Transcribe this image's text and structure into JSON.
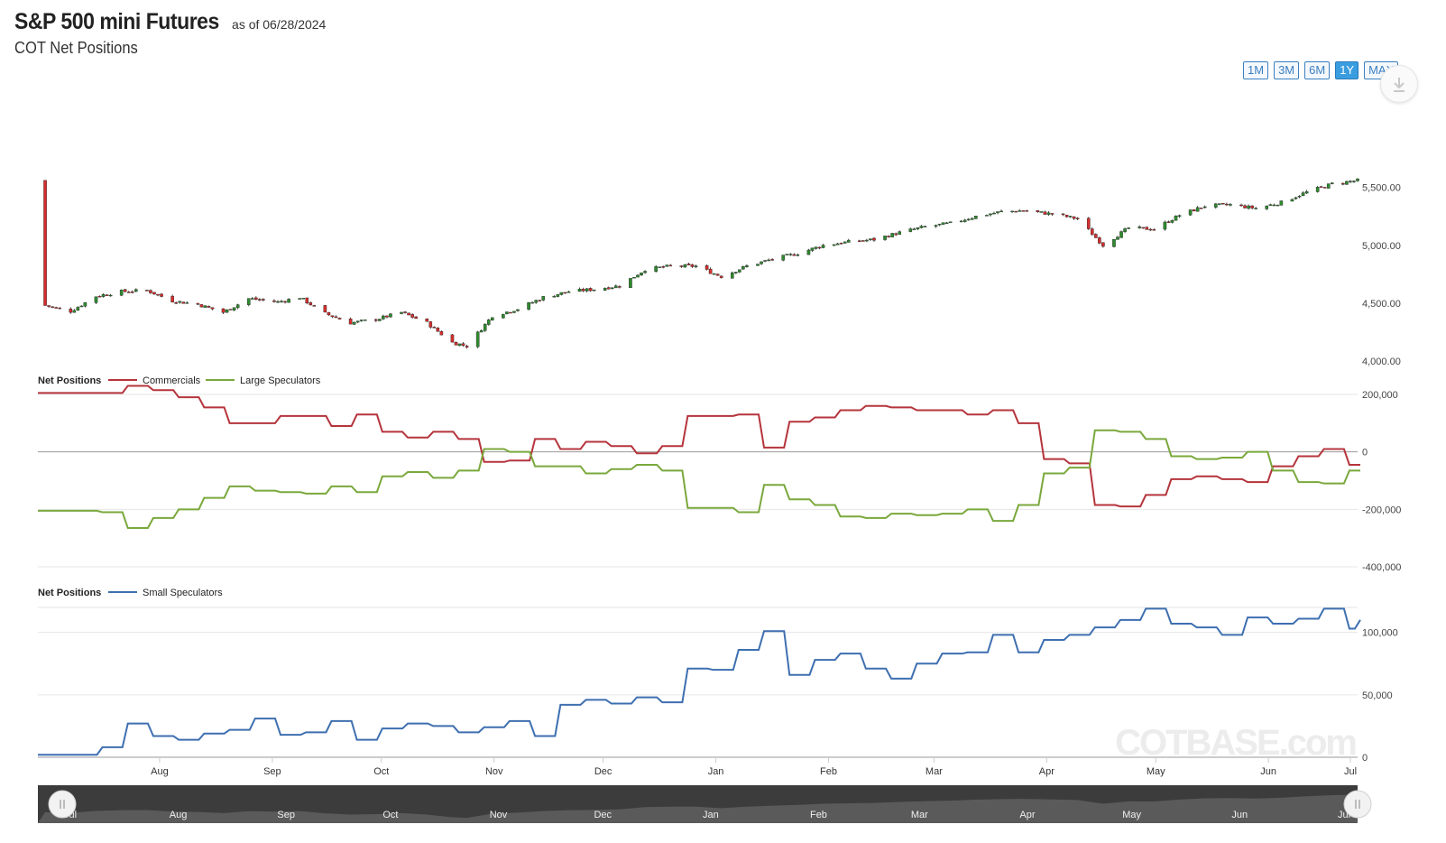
{
  "header": {
    "title": "S&P 500 mini Futures",
    "as_of": "as of 06/28/2024",
    "subtitle": "COT Net Positions"
  },
  "range_buttons": [
    {
      "label": "1M",
      "active": false
    },
    {
      "label": "3M",
      "active": false
    },
    {
      "label": "6M",
      "active": false
    },
    {
      "label": "1Y",
      "active": true
    },
    {
      "label": "MAX",
      "active": false
    }
  ],
  "download_icon": "download-icon",
  "watermark": "COTBASE.com",
  "colors": {
    "up_candle": "#2e8b2e",
    "down_candle": "#d62d2d",
    "commercials": "#b5343c",
    "large_speculators": "#7aa83c",
    "small_speculators": "#3e6fb0",
    "accent": "#3a9de0"
  },
  "x_axis_months": [
    "Aug",
    "Sep",
    "Oct",
    "Nov",
    "Dec",
    "Jan",
    "Feb",
    "Mar",
    "Apr",
    "May",
    "Jun",
    "Jul"
  ],
  "navigator": {
    "months": [
      "Jul",
      "Aug",
      "Sep",
      "Oct",
      "Nov",
      "Dec",
      "Jan",
      "Feb",
      "Mar",
      "Apr",
      "May",
      "Jun",
      "Jul"
    ]
  },
  "chart_data": [
    {
      "type": "candlestick",
      "title": "",
      "ylim": [
        4000,
        5700
      ],
      "y_ticks": [
        "4,000.00",
        "4,500.00",
        "5,000.00",
        "5,500.00"
      ],
      "x_range": [
        "2023-07-01",
        "2024-06-28"
      ],
      "close_path": [
        [
          "2023-07-03",
          4480
        ],
        [
          "2023-07-10",
          4430
        ],
        [
          "2023-07-17",
          4560
        ],
        [
          "2023-07-24",
          4600
        ],
        [
          "2023-07-31",
          4610
        ],
        [
          "2023-08-07",
          4520
        ],
        [
          "2023-08-14",
          4490
        ],
        [
          "2023-08-21",
          4420
        ],
        [
          "2023-08-28",
          4540
        ],
        [
          "2023-09-05",
          4510
        ],
        [
          "2023-09-11",
          4550
        ],
        [
          "2023-09-18",
          4410
        ],
        [
          "2023-09-25",
          4330
        ],
        [
          "2023-10-02",
          4360
        ],
        [
          "2023-10-09",
          4420
        ],
        [
          "2023-10-16",
          4330
        ],
        [
          "2023-10-23",
          4160
        ],
        [
          "2023-10-27",
          4130
        ],
        [
          "2023-11-03",
          4390
        ],
        [
          "2023-11-10",
          4450
        ],
        [
          "2023-11-17",
          4550
        ],
        [
          "2023-11-24",
          4600
        ],
        [
          "2023-12-01",
          4620
        ],
        [
          "2023-12-08",
          4650
        ],
        [
          "2023-12-15",
          4790
        ],
        [
          "2023-12-22",
          4820
        ],
        [
          "2023-12-29",
          4820
        ],
        [
          "2024-01-05",
          4730
        ],
        [
          "2024-01-12",
          4820
        ],
        [
          "2024-01-19",
          4880
        ],
        [
          "2024-01-26",
          4930
        ],
        [
          "2024-02-02",
          5000
        ],
        [
          "2024-02-09",
          5030
        ],
        [
          "2024-02-16",
          5050
        ],
        [
          "2024-02-23",
          5110
        ],
        [
          "2024-03-01",
          5160
        ],
        [
          "2024-03-08",
          5190
        ],
        [
          "2024-03-15",
          5250
        ],
        [
          "2024-03-22",
          5290
        ],
        [
          "2024-03-28",
          5300
        ],
        [
          "2024-04-05",
          5270
        ],
        [
          "2024-04-12",
          5230
        ],
        [
          "2024-04-19",
          5000
        ],
        [
          "2024-04-26",
          5150
        ],
        [
          "2024-05-03",
          5140
        ],
        [
          "2024-05-10",
          5260
        ],
        [
          "2024-05-17",
          5340
        ],
        [
          "2024-05-24",
          5350
        ],
        [
          "2024-05-31",
          5320
        ],
        [
          "2024-06-07",
          5370
        ],
        [
          "2024-06-14",
          5460
        ],
        [
          "2024-06-21",
          5530
        ],
        [
          "2024-06-28",
          5560
        ]
      ]
    },
    {
      "type": "line",
      "legend_title": "Net Positions",
      "ylim": [
        -400000,
        200000
      ],
      "y_ticks": [
        "-400,000",
        "-200,000",
        "0",
        "200,000"
      ],
      "series": [
        {
          "name": "Commercials",
          "points": [
            [
              "2023-07-01",
              205000
            ],
            [
              "2023-07-11",
              205000
            ],
            [
              "2023-07-18",
              205000
            ],
            [
              "2023-07-25",
              230000
            ],
            [
              "2023-08-01",
              215000
            ],
            [
              "2023-08-08",
              190000
            ],
            [
              "2023-08-15",
              155000
            ],
            [
              "2023-08-22",
              100000
            ],
            [
              "2023-08-29",
              100000
            ],
            [
              "2023-09-05",
              125000
            ],
            [
              "2023-09-12",
              125000
            ],
            [
              "2023-09-19",
              90000
            ],
            [
              "2023-09-26",
              130000
            ],
            [
              "2023-10-03",
              70000
            ],
            [
              "2023-10-10",
              50000
            ],
            [
              "2023-10-17",
              70000
            ],
            [
              "2023-10-24",
              45000
            ],
            [
              "2023-10-31",
              -35000
            ],
            [
              "2023-11-07",
              -30000
            ],
            [
              "2023-11-14",
              45000
            ],
            [
              "2023-11-21",
              10000
            ],
            [
              "2023-11-28",
              35000
            ],
            [
              "2023-12-05",
              20000
            ],
            [
              "2023-12-12",
              -5000
            ],
            [
              "2023-12-19",
              20000
            ],
            [
              "2023-12-26",
              125000
            ],
            [
              "2024-01-02",
              125000
            ],
            [
              "2024-01-09",
              130000
            ],
            [
              "2024-01-16",
              15000
            ],
            [
              "2024-01-23",
              105000
            ],
            [
              "2024-01-30",
              120000
            ],
            [
              "2024-02-06",
              145000
            ],
            [
              "2024-02-13",
              160000
            ],
            [
              "2024-02-20",
              155000
            ],
            [
              "2024-02-27",
              145000
            ],
            [
              "2024-03-05",
              145000
            ],
            [
              "2024-03-12",
              130000
            ],
            [
              "2024-03-19",
              145000
            ],
            [
              "2024-03-26",
              100000
            ],
            [
              "2024-04-02",
              -25000
            ],
            [
              "2024-04-09",
              -40000
            ],
            [
              "2024-04-16",
              -185000
            ],
            [
              "2024-04-23",
              -190000
            ],
            [
              "2024-04-30",
              -150000
            ],
            [
              "2024-05-07",
              -95000
            ],
            [
              "2024-05-14",
              -85000
            ],
            [
              "2024-05-21",
              -95000
            ],
            [
              "2024-05-28",
              -105000
            ],
            [
              "2024-06-04",
              -50000
            ],
            [
              "2024-06-11",
              -15000
            ],
            [
              "2024-06-18",
              10000
            ],
            [
              "2024-06-25",
              -45000
            ],
            [
              "2024-06-28",
              -45000
            ]
          ]
        },
        {
          "name": "Large Speculators",
          "points": [
            [
              "2023-07-01",
              -205000
            ],
            [
              "2023-07-11",
              -205000
            ],
            [
              "2023-07-18",
              -210000
            ],
            [
              "2023-07-25",
              -265000
            ],
            [
              "2023-08-01",
              -230000
            ],
            [
              "2023-08-08",
              -200000
            ],
            [
              "2023-08-15",
              -160000
            ],
            [
              "2023-08-22",
              -120000
            ],
            [
              "2023-08-29",
              -135000
            ],
            [
              "2023-09-05",
              -140000
            ],
            [
              "2023-09-12",
              -145000
            ],
            [
              "2023-09-19",
              -120000
            ],
            [
              "2023-09-26",
              -140000
            ],
            [
              "2023-10-03",
              -85000
            ],
            [
              "2023-10-10",
              -70000
            ],
            [
              "2023-10-17",
              -90000
            ],
            [
              "2023-10-24",
              -65000
            ],
            [
              "2023-10-31",
              10000
            ],
            [
              "2023-11-07",
              0
            ],
            [
              "2023-11-14",
              -50000
            ],
            [
              "2023-11-21",
              -50000
            ],
            [
              "2023-11-28",
              -75000
            ],
            [
              "2023-12-05",
              -60000
            ],
            [
              "2023-12-12",
              -45000
            ],
            [
              "2023-12-19",
              -65000
            ],
            [
              "2023-12-26",
              -195000
            ],
            [
              "2024-01-02",
              -195000
            ],
            [
              "2024-01-09",
              -210000
            ],
            [
              "2024-01-16",
              -115000
            ],
            [
              "2024-01-23",
              -165000
            ],
            [
              "2024-01-30",
              -185000
            ],
            [
              "2024-02-06",
              -225000
            ],
            [
              "2024-02-13",
              -230000
            ],
            [
              "2024-02-20",
              -215000
            ],
            [
              "2024-02-27",
              -220000
            ],
            [
              "2024-03-05",
              -215000
            ],
            [
              "2024-03-12",
              -200000
            ],
            [
              "2024-03-19",
              -240000
            ],
            [
              "2024-03-26",
              -185000
            ],
            [
              "2024-04-02",
              -75000
            ],
            [
              "2024-04-09",
              -55000
            ],
            [
              "2024-04-16",
              75000
            ],
            [
              "2024-04-23",
              70000
            ],
            [
              "2024-04-30",
              45000
            ],
            [
              "2024-05-07",
              -15000
            ],
            [
              "2024-05-14",
              -25000
            ],
            [
              "2024-05-21",
              -20000
            ],
            [
              "2024-05-28",
              0
            ],
            [
              "2024-06-04",
              -65000
            ],
            [
              "2024-06-11",
              -105000
            ],
            [
              "2024-06-18",
              -110000
            ],
            [
              "2024-06-25",
              -65000
            ],
            [
              "2024-06-28",
              -65000
            ]
          ]
        }
      ]
    },
    {
      "type": "line",
      "legend_title": "Net Positions",
      "ylim": [
        0,
        120000
      ],
      "y_ticks": [
        "0",
        "50,000",
        "100,000"
      ],
      "series": [
        {
          "name": "Small Speculators",
          "points": [
            [
              "2023-07-01",
              2000
            ],
            [
              "2023-07-11",
              2000
            ],
            [
              "2023-07-18",
              8000
            ],
            [
              "2023-07-25",
              27000
            ],
            [
              "2023-08-01",
              17000
            ],
            [
              "2023-08-08",
              14000
            ],
            [
              "2023-08-15",
              19000
            ],
            [
              "2023-08-22",
              22000
            ],
            [
              "2023-08-29",
              31000
            ],
            [
              "2023-09-05",
              18000
            ],
            [
              "2023-09-12",
              20000
            ],
            [
              "2023-09-19",
              29000
            ],
            [
              "2023-09-26",
              14000
            ],
            [
              "2023-10-03",
              23000
            ],
            [
              "2023-10-10",
              27000
            ],
            [
              "2023-10-17",
              25000
            ],
            [
              "2023-10-24",
              20000
            ],
            [
              "2023-10-31",
              24000
            ],
            [
              "2023-11-07",
              29000
            ],
            [
              "2023-11-14",
              17000
            ],
            [
              "2023-11-21",
              42000
            ],
            [
              "2023-11-28",
              46000
            ],
            [
              "2023-12-05",
              43000
            ],
            [
              "2023-12-12",
              48000
            ],
            [
              "2023-12-19",
              44000
            ],
            [
              "2023-12-26",
              71000
            ],
            [
              "2024-01-02",
              70000
            ],
            [
              "2024-01-09",
              86000
            ],
            [
              "2024-01-16",
              101000
            ],
            [
              "2024-01-23",
              66000
            ],
            [
              "2024-01-30",
              78000
            ],
            [
              "2024-02-06",
              83000
            ],
            [
              "2024-02-13",
              71000
            ],
            [
              "2024-02-20",
              63000
            ],
            [
              "2024-02-27",
              75000
            ],
            [
              "2024-03-05",
              83000
            ],
            [
              "2024-03-12",
              84000
            ],
            [
              "2024-03-19",
              98000
            ],
            [
              "2024-03-26",
              84000
            ],
            [
              "2024-04-02",
              94000
            ],
            [
              "2024-04-09",
              98000
            ],
            [
              "2024-04-16",
              104000
            ],
            [
              "2024-04-23",
              110000
            ],
            [
              "2024-04-30",
              119000
            ],
            [
              "2024-05-07",
              107000
            ],
            [
              "2024-05-14",
              104000
            ],
            [
              "2024-05-21",
              98000
            ],
            [
              "2024-05-28",
              112000
            ],
            [
              "2024-06-04",
              107000
            ],
            [
              "2024-06-11",
              111000
            ],
            [
              "2024-06-18",
              119000
            ],
            [
              "2024-06-25",
              103000
            ],
            [
              "2024-06-28",
              110000
            ]
          ]
        }
      ]
    }
  ]
}
